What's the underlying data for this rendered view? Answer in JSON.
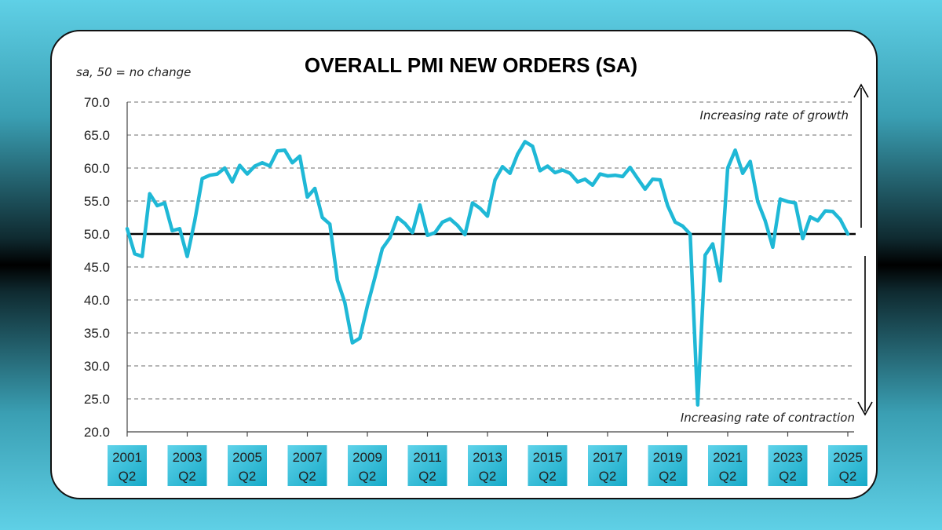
{
  "chart_data": {
    "type": "line",
    "title": "OVERALL PMI NEW ORDERS (SA)",
    "subtitle": "sa, 50 = no change",
    "annotations": {
      "top": "Increasing rate of growth",
      "bottom": "Increasing rate of contraction"
    },
    "ylim": [
      20,
      70
    ],
    "yticks": [
      "20.0",
      "25.0",
      "30.0",
      "35.0",
      "40.0",
      "45.0",
      "50.0",
      "55.0",
      "60.0",
      "65.0",
      "70.0"
    ],
    "reference_line": 50,
    "grid": true,
    "xlim": [
      "2001 Q2",
      "2025 Q2"
    ],
    "xticks": [
      {
        "year": "2001",
        "q": "Q2"
      },
      {
        "year": "2003",
        "q": "Q2"
      },
      {
        "year": "2005",
        "q": "Q2"
      },
      {
        "year": "2007",
        "q": "Q2"
      },
      {
        "year": "2009",
        "q": "Q2"
      },
      {
        "year": "2011",
        "q": "Q2"
      },
      {
        "year": "2013",
        "q": "Q2"
      },
      {
        "year": "2015",
        "q": "Q2"
      },
      {
        "year": "2017",
        "q": "Q2"
      },
      {
        "year": "2019",
        "q": "Q2"
      },
      {
        "year": "2021",
        "q": "Q2"
      },
      {
        "year": "2023",
        "q": "Q2"
      },
      {
        "year": "2025",
        "q": "Q2"
      }
    ],
    "line_color": "#1fb8d6",
    "series": [
      {
        "values": [
          50.8,
          47.0,
          46.6,
          56.1,
          54.3,
          54.7,
          50.5,
          50.8,
          46.6,
          52.0,
          58.4,
          58.9,
          59.1,
          60.0,
          57.9,
          60.4,
          59.1,
          60.3,
          60.8,
          60.3,
          62.6,
          62.7,
          60.8,
          61.8,
          55.6,
          56.9,
          52.5,
          51.5,
          43.0,
          39.6,
          33.5,
          34.2,
          39.1,
          43.4,
          47.8,
          49.4,
          52.5,
          51.6,
          50.2,
          54.4,
          49.8,
          50.2,
          51.8,
          52.3,
          51.3,
          49.9,
          54.7,
          53.9,
          52.7,
          58.2,
          60.2,
          59.2,
          62.1,
          64.0,
          63.3,
          59.6,
          60.3,
          59.3,
          59.7,
          59.2,
          57.9,
          58.3,
          57.4,
          59.1,
          58.8,
          58.9,
          58.7,
          60.1,
          58.4,
          56.8,
          58.3,
          58.2,
          54.3,
          51.8,
          51.2,
          50.0,
          24.1,
          46.8,
          48.5,
          42.9,
          60.0,
          62.7,
          59.2,
          61.0,
          54.9,
          52.0,
          48.0,
          55.3,
          54.9,
          54.7,
          49.3,
          52.6,
          52.0,
          53.5,
          53.4,
          52.2,
          50.0
        ]
      }
    ]
  }
}
